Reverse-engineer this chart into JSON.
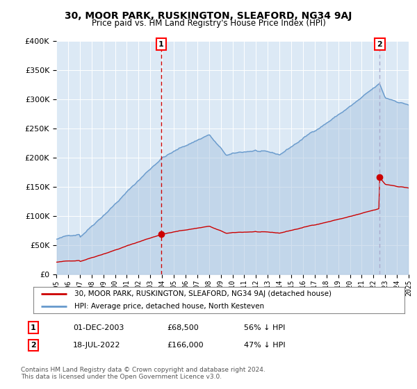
{
  "title": "30, MOOR PARK, RUSKINGTON, SLEAFORD, NG34 9AJ",
  "subtitle": "Price paid vs. HM Land Registry's House Price Index (HPI)",
  "legend_line1": "30, MOOR PARK, RUSKINGTON, SLEAFORD, NG34 9AJ (detached house)",
  "legend_line2": "HPI: Average price, detached house, North Kesteven",
  "transaction1_date": "01-DEC-2003",
  "transaction1_price": "£68,500",
  "transaction1_hpi": "56% ↓ HPI",
  "transaction2_date": "18-JUL-2022",
  "transaction2_price": "£166,000",
  "transaction2_hpi": "47% ↓ HPI",
  "footer": "Contains HM Land Registry data © Crown copyright and database right 2024.\nThis data is licensed under the Open Government Licence v3.0.",
  "ylim": [
    0,
    400000
  ],
  "yticks": [
    0,
    50000,
    100000,
    150000,
    200000,
    250000,
    300000,
    350000,
    400000
  ],
  "background_color": "#ffffff",
  "plot_bg_color": "#dce9f5",
  "grid_color": "#ffffff",
  "red_color": "#cc0000",
  "blue_color": "#6699cc",
  "blue_fill_color": "#aac4e0",
  "transaction1_x": 2003.92,
  "transaction2_x": 2022.54,
  "transaction1_vline_color": "#cc0000",
  "transaction2_vline_color": "#aaaacc",
  "dot_color": "#cc0000",
  "xlim_left": 1995,
  "xlim_right": 2025
}
